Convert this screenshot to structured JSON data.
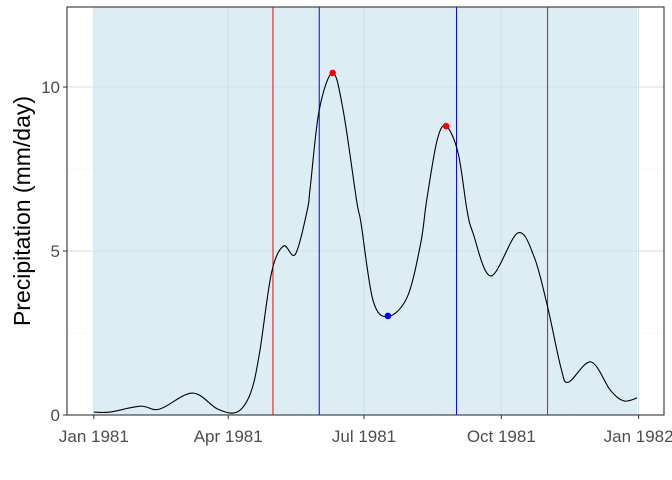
{
  "chart_data": {
    "type": "line",
    "title": "",
    "xlabel": "",
    "ylabel": "Precipitation (mm/day)",
    "xlim": [
      "1980-12-14",
      "1982-01-18"
    ],
    "ylim": [
      0,
      12.44
    ],
    "grid": true,
    "x_ticks": [
      {
        "date": "1981-01-01",
        "label": "Jan 1981"
      },
      {
        "date": "1981-04-01",
        "label": "Apr 1981"
      },
      {
        "date": "1981-07-01",
        "label": "Jul 1981"
      },
      {
        "date": "1981-10-01",
        "label": "Oct 1981"
      },
      {
        "date": "1982-01-01",
        "label": "Jan 1982"
      }
    ],
    "y_ticks": [
      {
        "value": 0,
        "label": "0"
      },
      {
        "value": 5,
        "label": "5"
      },
      {
        "value": 10,
        "label": "10"
      }
    ],
    "shaded_period": {
      "start": "1981-01-01",
      "end": "1981-12-31",
      "color": "#d6eaf2"
    },
    "vlines": [
      {
        "date": "1981-05-01",
        "color": "#ff0000"
      },
      {
        "date": "1981-06-01",
        "color": "#0000ff"
      },
      {
        "date": "1981-09-01",
        "color": "#0000ff"
      },
      {
        "date": "1981-11-01",
        "color": "#ff0000"
      }
    ],
    "series": [
      {
        "color": "#000000",
        "points": [
          [
            "1981-01-01",
            0.09
          ],
          [
            "1981-01-12",
            0.09
          ],
          [
            "1981-02-01",
            0.27
          ],
          [
            "1981-02-14",
            0.18
          ],
          [
            "1981-03-08",
            0.67
          ],
          [
            "1981-03-25",
            0.18
          ],
          [
            "1981-04-07",
            0.09
          ],
          [
            "1981-04-16",
            0.67
          ],
          [
            "1981-04-22",
            1.89
          ],
          [
            "1981-04-30",
            4.33
          ],
          [
            "1981-05-08",
            5.15
          ],
          [
            "1981-05-16",
            4.9
          ],
          [
            "1981-05-24",
            6.25
          ],
          [
            "1981-05-26",
            6.95
          ],
          [
            "1981-06-01",
            9.3
          ],
          [
            "1981-06-10",
            10.43
          ],
          [
            "1981-06-17",
            9.3
          ],
          [
            "1981-06-26",
            6.55
          ],
          [
            "1981-06-29",
            5.85
          ],
          [
            "1981-07-07",
            3.5
          ],
          [
            "1981-07-17",
            3.0
          ],
          [
            "1981-07-30",
            3.6
          ],
          [
            "1981-08-08",
            5.24
          ],
          [
            "1981-08-12",
            6.55
          ],
          [
            "1981-08-19",
            8.38
          ],
          [
            "1981-08-25",
            8.81
          ],
          [
            "1981-09-02",
            8.0
          ],
          [
            "1981-09-08",
            6.25
          ],
          [
            "1981-09-12",
            5.55
          ],
          [
            "1981-09-24",
            4.24
          ],
          [
            "1981-10-12",
            5.55
          ],
          [
            "1981-10-23",
            4.82
          ],
          [
            "1981-11-01",
            3.3
          ],
          [
            "1981-11-10",
            1.43
          ],
          [
            "1981-11-15",
            1.0
          ],
          [
            "1981-11-30",
            1.62
          ],
          [
            "1981-12-13",
            0.76
          ],
          [
            "1981-12-22",
            0.43
          ],
          [
            "1981-12-31",
            0.52
          ]
        ]
      }
    ],
    "markers": [
      {
        "date": "1981-06-10",
        "value": 10.43,
        "color": "#ff0000"
      },
      {
        "date": "1981-08-25",
        "value": 8.81,
        "color": "#ff0000"
      },
      {
        "date": "1981-07-17",
        "value": 3.02,
        "color": "#0000ff"
      }
    ]
  }
}
